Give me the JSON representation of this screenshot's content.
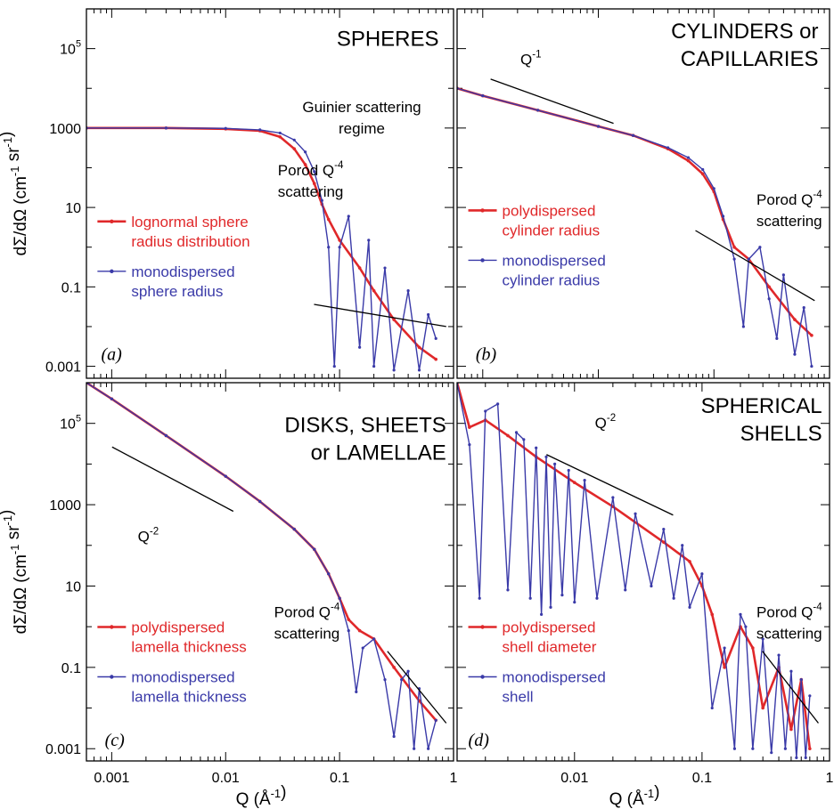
{
  "chart_data": [
    {
      "panel": "(a)",
      "type": "line",
      "title_lines": [
        "SPHERES"
      ],
      "annotations": [
        {
          "lines": [
            "Guinier scattering",
            "regime"
          ]
        },
        {
          "lines": [
            "Porod Q⁻⁴",
            "scattering"
          ]
        }
      ],
      "x_scale": "log",
      "y_scale": "log",
      "xlim": [
        0.0006,
        1
      ],
      "ylim": [
        0.0005,
        1000000
      ],
      "xticks": [
        "0.001",
        "0.01",
        "0.1",
        "1"
      ],
      "yticks": [
        "0.001",
        "0.1",
        "10",
        "1000",
        "10⁵"
      ],
      "xlabel": "",
      "ylabel": "dΣ/dΩ (cm⁻¹ sr⁻¹)",
      "series": [
        {
          "name_lines": [
            "lognormal sphere",
            "radius distribution"
          ],
          "color": "#e0282a",
          "x": [
            0.0006,
            0.003,
            0.01,
            0.02,
            0.03,
            0.04,
            0.05,
            0.06,
            0.07,
            0.08,
            0.1,
            0.15,
            0.2,
            0.3,
            0.5,
            0.7
          ],
          "y": [
            1000,
            1000,
            950,
            850,
            600,
            300,
            120,
            40,
            12,
            5,
            1.5,
            0.3,
            0.08,
            0.015,
            0.003,
            0.0015
          ]
        },
        {
          "name_lines": [
            "monodispersed",
            "sphere radius"
          ],
          "color": "#3a3aa8",
          "x": [
            0.0006,
            0.003,
            0.01,
            0.02,
            0.03,
            0.04,
            0.05,
            0.06,
            0.07,
            0.08,
            0.09,
            0.1,
            0.12,
            0.15,
            0.18,
            0.2,
            0.25,
            0.3,
            0.4,
            0.5,
            0.6,
            0.7
          ],
          "y": [
            1000,
            1000,
            980,
            900,
            750,
            500,
            250,
            80,
            15,
            1,
            0.001,
            1,
            6,
            0.003,
            1.5,
            0.001,
            0.3,
            0.0008,
            0.08,
            0.0008,
            0.02,
            0.005
          ]
        }
      ]
    },
    {
      "panel": "(b)",
      "type": "line",
      "title_lines": [
        "CYLINDERS or",
        "CAPILLARIES"
      ],
      "annotations": [
        {
          "lines": [
            "Q⁻¹"
          ]
        },
        {
          "lines": [
            "Porod Q⁻⁴",
            "scattering"
          ]
        }
      ],
      "x_scale": "log",
      "y_scale": "log",
      "xlim": [
        0.0006,
        1
      ],
      "ylim": [
        0.0005,
        1000000
      ],
      "xticks": [
        "0.001",
        "0.01",
        "0.1",
        "1"
      ],
      "yticks": [
        "0.001",
        "0.1",
        "10",
        "1000",
        "10⁵"
      ],
      "xlabel": "",
      "ylabel": "",
      "series": [
        {
          "name_lines": [
            "polydispersed",
            "cylinder radius"
          ],
          "color": "#e0282a",
          "x": [
            0.0006,
            0.001,
            0.003,
            0.01,
            0.02,
            0.04,
            0.06,
            0.08,
            0.1,
            0.12,
            0.15,
            0.2,
            0.3,
            0.5,
            0.7
          ],
          "y": [
            10000,
            6500,
            2800,
            1100,
            650,
            300,
            150,
            70,
            25,
            5,
            1,
            0.5,
            0.1,
            0.015,
            0.006
          ]
        },
        {
          "name_lines": [
            "monodispersed",
            "cylinder radius"
          ],
          "color": "#3a3aa8",
          "x": [
            0.0006,
            0.001,
            0.003,
            0.01,
            0.02,
            0.04,
            0.06,
            0.08,
            0.1,
            0.12,
            0.15,
            0.18,
            0.2,
            0.25,
            0.3,
            0.35,
            0.4,
            0.5,
            0.6,
            0.7
          ],
          "y": [
            10000,
            6500,
            2800,
            1100,
            650,
            320,
            180,
            90,
            30,
            6,
            0.5,
            0.01,
            0.5,
            1,
            0.05,
            0.005,
            0.2,
            0.002,
            0.03,
            0.001
          ]
        }
      ]
    },
    {
      "panel": "(c)",
      "type": "line",
      "title_lines": [
        "DISKS, SHEETS",
        "or LAMELLAE"
      ],
      "annotations": [
        {
          "lines": [
            "Q⁻²"
          ]
        },
        {
          "lines": [
            "Porod Q⁻⁴",
            "scattering"
          ]
        }
      ],
      "x_scale": "log",
      "y_scale": "log",
      "xlim": [
        0.0006,
        1
      ],
      "ylim": [
        0.0005,
        1000000
      ],
      "xticks": [
        "0.001",
        "0.01",
        "0.1",
        "1"
      ],
      "yticks": [
        "0.001",
        "0.1",
        "10",
        "1000",
        "10⁵"
      ],
      "xlabel": "Q (Å⁻¹)",
      "ylabel": "dΣ/dΩ (cm⁻¹ sr⁻¹)",
      "series": [
        {
          "name_lines": [
            "polydispersed",
            "lamella thickness"
          ],
          "color": "#e0282a",
          "x": [
            0.0006,
            0.001,
            0.003,
            0.01,
            0.02,
            0.04,
            0.06,
            0.08,
            0.1,
            0.12,
            0.15,
            0.2,
            0.3,
            0.5,
            0.7
          ],
          "y": [
            1000000,
            400000,
            50000,
            5000,
            1200,
            250,
            80,
            20,
            5,
            1.5,
            0.8,
            0.5,
            0.1,
            0.015,
            0.005
          ]
        },
        {
          "name_lines": [
            "monodispersed",
            "lamella thickness"
          ],
          "color": "#3a3aa8",
          "x": [
            0.0006,
            0.001,
            0.003,
            0.01,
            0.02,
            0.04,
            0.06,
            0.08,
            0.1,
            0.12,
            0.14,
            0.16,
            0.2,
            0.25,
            0.3,
            0.35,
            0.4,
            0.45,
            0.5,
            0.6,
            0.7
          ],
          "y": [
            1000000,
            400000,
            50000,
            5000,
            1200,
            250,
            80,
            20,
            5,
            0.8,
            0.025,
            0.3,
            0.5,
            0.05,
            0.002,
            0.05,
            0.08,
            0.001,
            0.03,
            0.001,
            0.005
          ]
        }
      ]
    },
    {
      "panel": "(d)",
      "type": "line",
      "title_lines": [
        "SPHERICAL",
        "SHELLS"
      ],
      "annotations": [
        {
          "lines": [
            "Q⁻²"
          ]
        },
        {
          "lines": [
            "Porod Q⁻⁴",
            "scattering"
          ]
        }
      ],
      "x_scale": "log",
      "y_scale": "log",
      "xlim": [
        0.0012,
        1
      ],
      "ylim": [
        0.0005,
        1000000
      ],
      "xticks": [
        "0.01",
        "0.1",
        "1"
      ],
      "yticks": [],
      "xlabel": "Q (Å⁻¹)",
      "ylabel": "",
      "series": [
        {
          "name_lines": [
            "polydispersed",
            "shell diameter"
          ],
          "color": "#e0282a",
          "x": [
            0.0012,
            0.0015,
            0.002,
            0.003,
            0.005,
            0.01,
            0.02,
            0.05,
            0.08,
            0.1,
            0.12,
            0.15,
            0.2,
            0.25,
            0.3,
            0.4,
            0.5,
            0.6,
            0.7
          ],
          "y": [
            1000000,
            80000,
            120000,
            50000,
            15000,
            3500,
            900,
            120,
            40,
            10,
            2,
            0.1,
            1,
            0.3,
            0.01,
            0.1,
            0.003,
            0.05,
            0.001
          ]
        },
        {
          "name_lines": [
            "monodispersed",
            "shell"
          ],
          "color": "#3a3aa8",
          "x": [
            0.0012,
            0.0015,
            0.0018,
            0.002,
            0.0025,
            0.003,
            0.0035,
            0.004,
            0.0045,
            0.005,
            0.0055,
            0.006,
            0.0065,
            0.007,
            0.008,
            0.009,
            0.01,
            0.012,
            0.015,
            0.02,
            0.025,
            0.03,
            0.04,
            0.05,
            0.06,
            0.07,
            0.08,
            0.1,
            0.12,
            0.15,
            0.18,
            0.2,
            0.22,
            0.25,
            0.3,
            0.35,
            0.4,
            0.45,
            0.5,
            0.55,
            0.6,
            0.65,
            0.7
          ],
          "y": [
            1000000,
            30000,
            5,
            200000,
            300000,
            8,
            60000,
            40000,
            5,
            25000,
            2,
            15000,
            3,
            10000,
            6,
            7000,
            4,
            4000,
            5,
            1500,
            8,
            600,
            10,
            250,
            5,
            100,
            3,
            20,
            0.01,
            0.3,
            0.001,
            2,
            1,
            0.001,
            0.5,
            0.0008,
            0.2,
            0.001,
            0.08,
            0.0006,
            0.05,
            0.0006,
            0.02
          ]
        }
      ]
    }
  ]
}
